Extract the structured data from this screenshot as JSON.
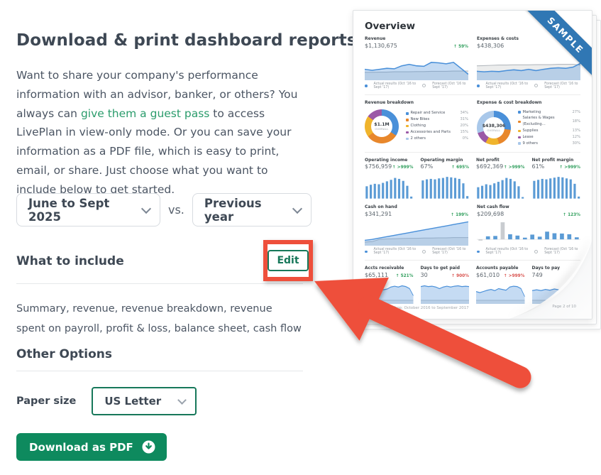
{
  "colors": {
    "accent_green": "#0e8a5e",
    "outline_green": "#17785a",
    "link_green": "#2b9c6c",
    "highlight_red": "#ee4f3b",
    "ribbon_blue": "#3077b4",
    "chart_blue": "#4a90d9",
    "chart_gray": "#b5babf",
    "delta_green": "#33a05f",
    "delta_red": "#d9534f"
  },
  "left": {
    "title": "Download & print dashboard reports",
    "intro_before_link": "Want to share your company's performance information with an advisor, banker, or others? You always can ",
    "intro_link": "give them a guest pass",
    "intro_after_link": " to access LivePlan in view-only mode. Or you can save your information as a PDF file, which is easy to print, email, or share. Just choose what you want to include below to get started.",
    "period_value": "June to Sept 2025",
    "vs_label": "vs.",
    "compare_value": "Previous year",
    "include_heading": "What to include",
    "edit_label": "Edit",
    "include_summary": "Summary, revenue, revenue breakdown, revenue spent on payroll, profit & loss, balance sheet, cash flow",
    "other_options_heading": "Other Options",
    "paper_size_label": "Paper size",
    "paper_size_value": "US Letter",
    "download_label": "Download as PDF"
  },
  "preview": {
    "ribbon": "SAMPLE",
    "title": "Overview",
    "legend_actual": "Actual results (Oct '16 to Sept '17)",
    "legend_forecast": "Forecast (Oct '16 to Sept '17)",
    "footer_left": "Garrett's Bike Shop: October 2016 to September 2017",
    "footer_right": "Page 2 of 10",
    "kpis": {
      "revenue": {
        "label": "Revenue",
        "value": "$1,130,675",
        "delta": "↑ 59%"
      },
      "expenses": {
        "label": "Expenses & costs",
        "value": "$438,306",
        "delta": "↓ 35%"
      },
      "operating_income": {
        "label": "Operating income",
        "value": "$756,959",
        "delta": "↑ >999%"
      },
      "operating_margin": {
        "label": "Operating margin",
        "value": "67%",
        "delta": "↑ 695%"
      },
      "net_profit": {
        "label": "Net profit",
        "value": "$692,369",
        "delta": "↑ >999%"
      },
      "net_profit_margin": {
        "label": "Net profit margin",
        "value": "61%",
        "delta": "↑ >999%"
      },
      "cash_on_hand": {
        "label": "Cash on hand",
        "value": "$341,291",
        "delta": "↑ 199%"
      },
      "net_cash_flow": {
        "label": "Net cash flow",
        "value": "$209,698",
        "delta": "↑ 123%"
      },
      "accts_receivable": {
        "label": "Accts receivable",
        "value": "$65,111",
        "delta": "↑ 521%"
      },
      "days_to_get_paid": {
        "label": "Days to get paid",
        "value": "30",
        "delta": "↑ 900%"
      },
      "accounts_payable": {
        "label": "Accounts payable",
        "value": "$61,010",
        "delta": "↑ >999%"
      },
      "days_to_pay": {
        "label": "Days to pay",
        "value": "749",
        "delta": "↑"
      }
    },
    "breakdowns": {
      "revenue": {
        "label": "Revenue breakdown",
        "center_value": "$1.1M",
        "center_sub": "OVERALL",
        "legend": [
          {
            "name": "Repair and Service",
            "pct": "34%",
            "color": "#4a90d9"
          },
          {
            "name": "New Bikes",
            "pct": "31%",
            "color": "#e8872b"
          },
          {
            "name": "Clothing",
            "pct": "20%",
            "color": "#f0b42c"
          },
          {
            "name": "Accessories and Parts",
            "pct": "15%",
            "color": "#9b59a6"
          },
          {
            "name": "2 others",
            "pct": "0%",
            "color": "#a9c8ea"
          }
        ]
      },
      "expense": {
        "label": "Expense & cost breakdown",
        "center_value": "$438,306",
        "center_sub": "OVERALL",
        "legend": [
          {
            "name": "Marketing",
            "pct": "27%",
            "color": "#4a90d9"
          },
          {
            "name": "Salaries & Wages (Excluding…",
            "pct": "18%",
            "color": "#e8872b"
          },
          {
            "name": "Supplies",
            "pct": "13%",
            "color": "#f0b42c"
          },
          {
            "name": "Lease",
            "pct": "12%",
            "color": "#9b59a6"
          },
          {
            "name": "9 others",
            "pct": "30%",
            "color": "#a9c8ea"
          }
        ]
      }
    },
    "charts": {
      "revenue": {
        "type": "area",
        "actual": [
          0.38,
          0.34,
          0.38,
          0.42,
          0.4,
          0.52,
          0.58,
          0.52,
          0.5,
          0.66,
          0.64,
          0.6,
          0.66,
          0.42,
          0.18
        ],
        "forecast": [
          0.26,
          0.26,
          0.27,
          0.27,
          0.28,
          0.28,
          0.28,
          0.29,
          0.29,
          0.3,
          0.3,
          0.3,
          0.31,
          0.31,
          0.31
        ]
      },
      "expenses": {
        "type": "area",
        "actual": [
          0.3,
          0.28,
          0.3,
          0.29,
          0.33,
          0.36,
          0.33,
          0.38,
          0.33,
          0.38,
          0.42,
          0.44,
          0.42,
          0.47,
          0.62
        ],
        "forecast": [
          0.52,
          0.53,
          0.54,
          0.55,
          0.55,
          0.56,
          0.56,
          0.56,
          0.57,
          0.57,
          0.57,
          0.58,
          0.58,
          0.58,
          0.55
        ]
      },
      "operating_income": {
        "type": "bars",
        "values": [
          0.5,
          0.56,
          0.6,
          0.58,
          0.64,
          0.7,
          0.76,
          0.84,
          0.8,
          0.72,
          0.52,
          0.08
        ]
      },
      "operating_margin": {
        "type": "bars",
        "values": [
          0.74,
          0.78,
          0.8,
          0.78,
          0.82,
          0.84,
          0.88,
          0.86,
          0.84,
          0.8,
          0.62,
          0.1
        ]
      },
      "net_profit": {
        "type": "bars",
        "values": [
          0.46,
          0.52,
          0.58,
          0.55,
          0.62,
          0.68,
          0.75,
          0.84,
          0.8,
          0.7,
          0.5,
          0.06
        ]
      },
      "net_profit_margin": {
        "type": "bars",
        "values": [
          0.72,
          0.76,
          0.8,
          0.78,
          0.82,
          0.85,
          0.88,
          0.86,
          0.82,
          0.78,
          0.6,
          0.08
        ]
      },
      "cash_on_hand": {
        "type": "area",
        "actual": [
          0.18,
          0.22,
          0.28,
          0.34,
          0.4,
          0.46,
          0.52,
          0.58,
          0.64,
          0.7,
          0.76,
          0.82,
          0.88,
          0.94,
          1.0
        ],
        "forecast": [
          0.1,
          0.12,
          0.22,
          0.24,
          0.25,
          0.26,
          0.27,
          0.27,
          0.28,
          0.28,
          0.29,
          0.29,
          0.3,
          0.3,
          0.3
        ]
      },
      "net_cash_flow": {
        "type": "bars",
        "baseline": 23,
        "up": 19,
        "down": 6,
        "gray": [
          0,
          3
        ],
        "values": [
          -0.22,
          0.18,
          0.2,
          1.0,
          0.3,
          0.22,
          0.1,
          0.28,
          0.16,
          0.45,
          0.36,
          0.34,
          0.3,
          0.12
        ]
      },
      "accts_receivable": {
        "type": "area",
        "actual": [
          0.55,
          0.6,
          0.58,
          0.66,
          0.74,
          0.64,
          0.68,
          0.78,
          0.82,
          0.78,
          0.84,
          0.8,
          0.7,
          0.35
        ],
        "forecast": [
          0.12,
          0.12,
          0.12,
          0.12,
          0.12,
          0.12,
          0.12,
          0.12,
          0.12,
          0.12,
          0.12,
          0.12,
          0.12,
          0.12
        ]
      },
      "days_to_get_paid": {
        "type": "area",
        "actual": [
          0.8,
          0.84,
          0.8,
          0.82,
          0.78,
          0.7,
          0.78,
          0.82,
          0.78,
          0.82,
          0.84,
          0.8,
          0.82,
          0.8
        ],
        "forecast": [
          0.12,
          0.12,
          0.12,
          0.12,
          0.12,
          0.12,
          0.12,
          0.12,
          0.12,
          0.12,
          0.12,
          0.12,
          0.12,
          0.12
        ]
      },
      "accounts_payable": {
        "type": "area",
        "actual": [
          0.55,
          0.5,
          0.56,
          0.62,
          0.66,
          0.6,
          0.7,
          0.66,
          0.62,
          0.78,
          0.82,
          0.8,
          0.7,
          0.3
        ],
        "forecast": [
          0.12,
          0.12,
          0.12,
          0.12,
          0.12,
          0.12,
          0.12,
          0.12,
          0.12,
          0.12,
          0.12,
          0.12,
          0.12,
          0.12
        ]
      },
      "days_to_pay": {
        "type": "area",
        "actual": [
          0.6,
          0.64,
          0.6,
          0.66,
          0.62,
          0.68,
          0.64,
          0.66,
          0.62,
          0.64,
          0.66,
          0.62
        ],
        "forecast": [
          0.12,
          0.12,
          0.12,
          0.12,
          0.12,
          0.12,
          0.12,
          0.12,
          0.12,
          0.12,
          0.12,
          0.12
        ]
      }
    }
  }
}
